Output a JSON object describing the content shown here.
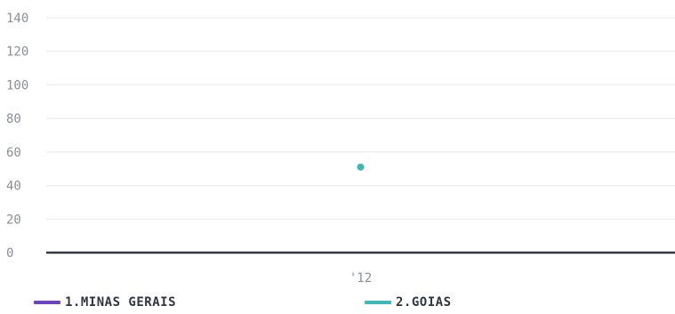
{
  "chart_data": {
    "type": "line",
    "title": "",
    "xlabel": "",
    "ylabel": "",
    "categories": [
      "'12"
    ],
    "ylim": [
      0,
      140
    ],
    "yticks": [
      0,
      20,
      40,
      60,
      80,
      100,
      120,
      140
    ],
    "grid": true,
    "legend_position": "bottom",
    "series": [
      {
        "name": "1.MINAS GERAIS",
        "color": "#6f42c1",
        "values": [
          null
        ]
      },
      {
        "name": "2.GOIAS",
        "color": "#3bb8b8",
        "values": [
          51
        ]
      }
    ]
  }
}
